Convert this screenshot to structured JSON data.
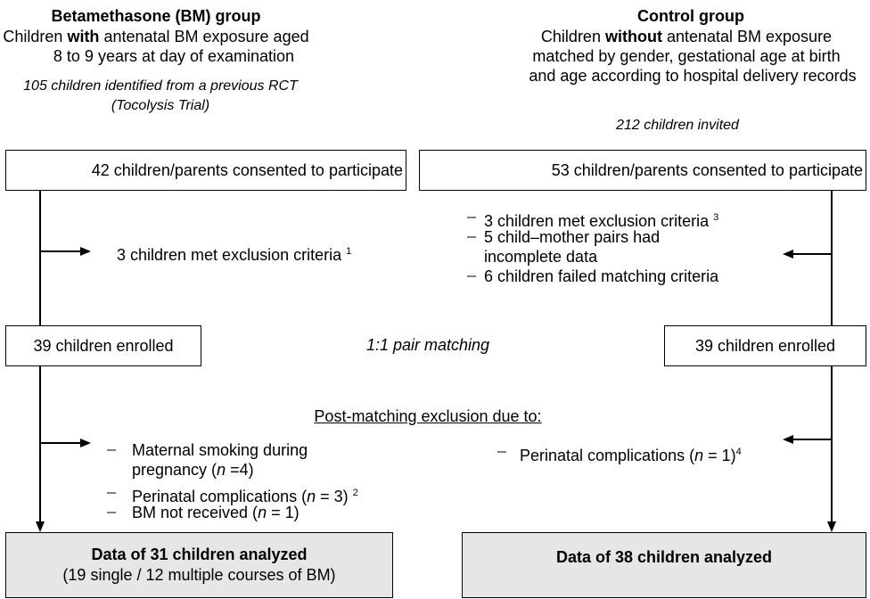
{
  "left": {
    "title": "Betamethasone (BM) group",
    "subtitle": [
      "Children ",
      "with",
      " antenatal BM exposure aged",
      "8 to 9 years at day of examination"
    ],
    "source": [
      "105 children identified from a previous RCT",
      "(Tocolysis Trial)"
    ],
    "consented": "42 children/parents consented to participate",
    "exclusion": {
      "text": "3 children met exclusion criteria ",
      "note": "1"
    },
    "enrolled": "39 children enrolled",
    "post_exclusions": [
      {
        "lines": [
          "Maternal smoking during",
          "pregnancy ("
        ],
        "n": "n",
        "rest": " =4)",
        "note": null
      },
      {
        "lines": [
          "Perinatal complications ("
        ],
        "n": "n",
        "rest": " = 3) ",
        "note": "2"
      },
      {
        "lines": [
          "BM not received ("
        ],
        "n": "n",
        "rest": " = 1)",
        "note": null
      }
    ],
    "result": {
      "title": "Data of 31 children analyzed",
      "detail": "(19 single / 12 multiple courses of BM)"
    }
  },
  "right": {
    "title": "Control group",
    "subtitle": [
      "Children ",
      "without",
      " antenatal BM exposure",
      "matched by gender, gestational age at birth",
      "and age according to hospital delivery records"
    ],
    "source": "212 children invited",
    "consented": "53 children/parents consented to participate",
    "exclusions": [
      {
        "lines": [
          "3 children met exclusion criteria "
        ],
        "note": "3"
      },
      {
        "lines": [
          "5 child–mother pairs had",
          "incomplete data"
        ],
        "note": null
      },
      {
        "lines": [
          "6 children failed matching criteria"
        ],
        "note": null
      }
    ],
    "enrolled": "39 children enrolled",
    "post_exclusion": {
      "text": "Perinatal complications (",
      "n": "n",
      "rest": " = 1)",
      "note": "4"
    },
    "result": {
      "title": "Data of 38 children analyzed"
    }
  },
  "matching": "1:1 pair matching",
  "post_matching_heading": "Post-matching exclusion due to:"
}
